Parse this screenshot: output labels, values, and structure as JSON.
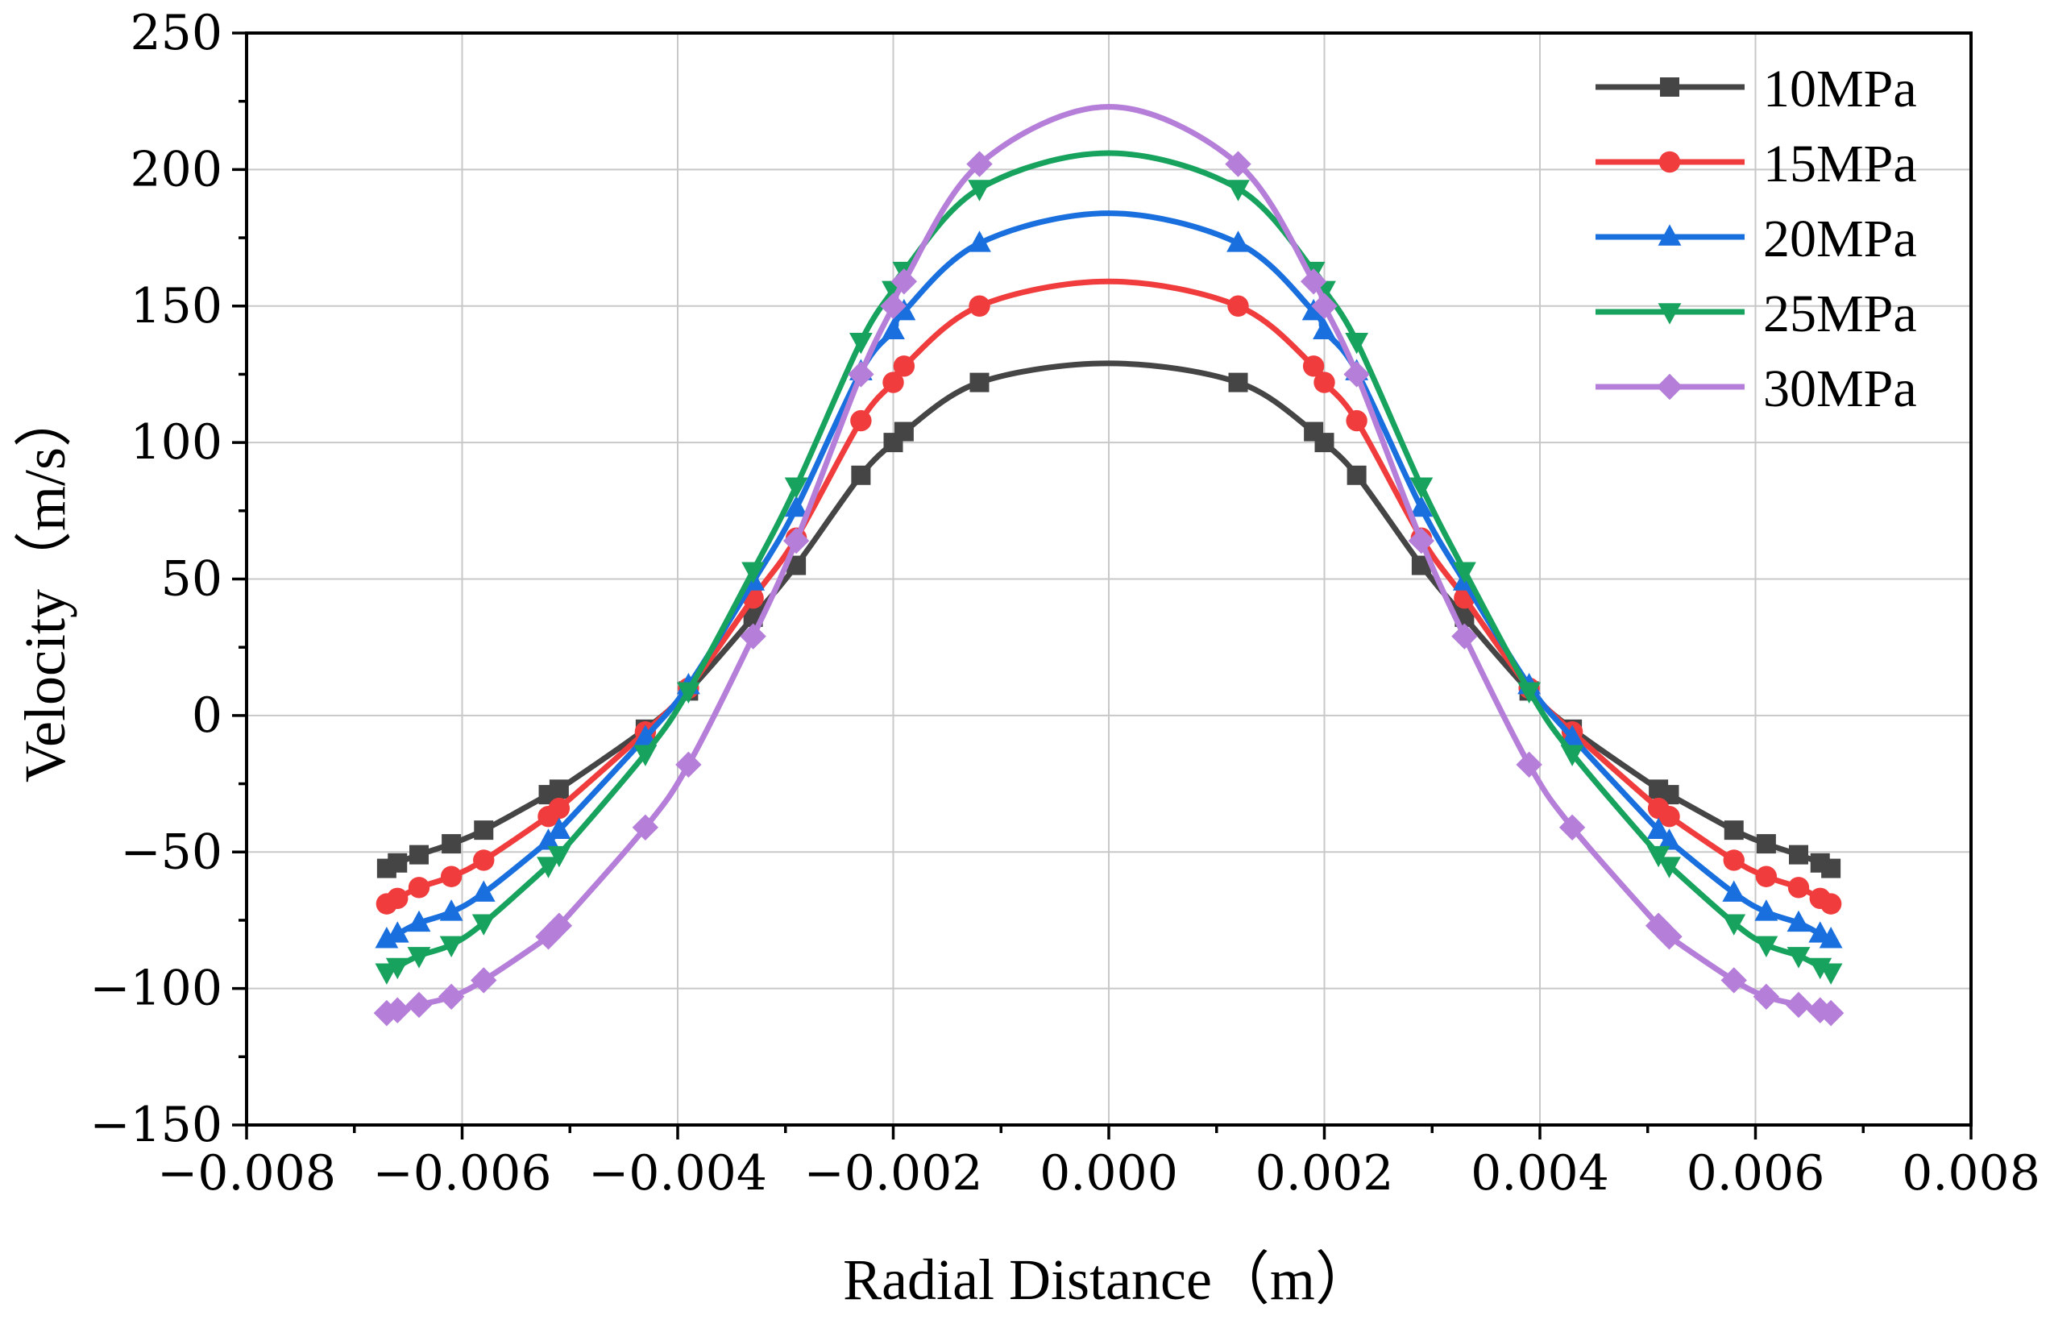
{
  "chart_data": {
    "type": "line",
    "title": "",
    "xlabel": "Radial Distance（m）",
    "ylabel": "Velocity（m/s）",
    "xlim": [
      -0.008,
      0.008
    ],
    "ylim": [
      -150,
      250
    ],
    "grid": true,
    "legend_position": "top-right",
    "x_ticks": [
      -0.008,
      -0.006,
      -0.004,
      -0.002,
      0.0,
      0.002,
      0.004,
      0.006,
      0.008
    ],
    "x_tick_labels": [
      "−0.008",
      "−0.006",
      "−0.004",
      "−0.002",
      "0.000",
      "0.002",
      "0.004",
      "0.006",
      "0.008"
    ],
    "y_ticks": [
      -150,
      -100,
      -50,
      0,
      50,
      100,
      150,
      200,
      250
    ],
    "y_tick_labels": [
      "−150",
      "−100",
      "−50",
      "0",
      "50",
      "100",
      "150",
      "200",
      "250"
    ],
    "x": [
      -0.0067,
      -0.0066,
      -0.0064,
      -0.0061,
      -0.0058,
      -0.0052,
      -0.0051,
      -0.0043,
      -0.0039,
      -0.0033,
      -0.0029,
      -0.0023,
      -0.002,
      -0.0019,
      -0.0012,
      0.0012,
      0.0019,
      0.002,
      0.0023,
      0.0029,
      0.0033,
      0.0039,
      0.0043,
      0.0051,
      0.0052,
      0.0058,
      0.0061,
      0.0064,
      0.0066,
      0.0067
    ],
    "series": [
      {
        "name": "10MPa",
        "color": "#454545",
        "marker": "square",
        "peak": 129,
        "values": [
          -56,
          -54,
          -51,
          -47,
          -42,
          -29,
          -27,
          -5,
          9,
          36,
          55,
          88,
          100,
          104,
          122,
          122,
          104,
          100,
          88,
          55,
          36,
          9,
          -5,
          -27,
          -29,
          -42,
          -47,
          -51,
          -54,
          -56
        ]
      },
      {
        "name": "15MPa",
        "color": "#f03c3c",
        "marker": "circle",
        "peak": 159,
        "values": [
          -69,
          -67,
          -63,
          -59,
          -53,
          -37,
          -34,
          -6,
          10,
          43,
          65,
          108,
          122,
          128,
          150,
          150,
          128,
          122,
          108,
          65,
          43,
          10,
          -6,
          -34,
          -37,
          -53,
          -59,
          -63,
          -67,
          -69
        ]
      },
      {
        "name": "20MPa",
        "color": "#1a6fdf",
        "marker": "triangle-up",
        "peak": 184,
        "values": [
          -82,
          -80,
          -76,
          -72,
          -65,
          -46,
          -42,
          -8,
          11,
          49,
          76,
          126,
          141,
          148,
          173,
          173,
          148,
          141,
          126,
          76,
          49,
          11,
          -8,
          -42,
          -46,
          -65,
          -72,
          -76,
          -80,
          -82
        ]
      },
      {
        "name": "25MPa",
        "color": "#17a35e",
        "marker": "triangle-down",
        "peak": 206,
        "values": [
          -94,
          -92,
          -88,
          -84,
          -76,
          -55,
          -51,
          -14,
          9,
          53,
          84,
          137,
          156,
          163,
          193,
          193,
          163,
          156,
          137,
          84,
          53,
          9,
          -14,
          -51,
          -55,
          -76,
          -84,
          -88,
          -92,
          -94
        ]
      },
      {
        "name": "30MPa",
        "color": "#b57ed9",
        "marker": "diamond",
        "peak": 223,
        "values": [
          -109,
          -108,
          -106,
          -103,
          -97,
          -81,
          -77,
          -41,
          -18,
          29,
          64,
          125,
          150,
          159,
          202,
          202,
          159,
          150,
          125,
          64,
          29,
          -18,
          -41,
          -77,
          -81,
          -97,
          -103,
          -106,
          -108,
          -109
        ]
      }
    ]
  }
}
